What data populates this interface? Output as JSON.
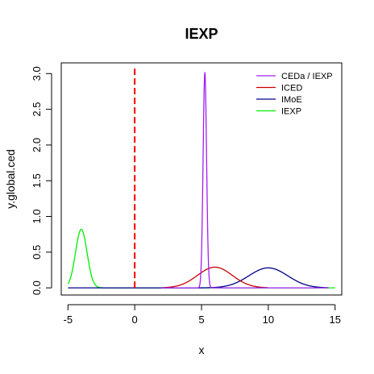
{
  "chart_data": {
    "type": "line",
    "title": "IEXP",
    "xlabel": "x",
    "ylabel": "y.global.ced",
    "xlim": [
      -5.5,
      15.5
    ],
    "ylim": [
      -0.1,
      3.15
    ],
    "xticks": [
      "-5",
      "0",
      "5",
      "10",
      "15"
    ],
    "xtick_values": [
      -5,
      0,
      5,
      10,
      15
    ],
    "yticks": [
      "0.0",
      "0.5",
      "1.0",
      "1.5",
      "2.0",
      "2.5",
      "3.0"
    ],
    "ytick_values": [
      0,
      0.5,
      1,
      1.5,
      2,
      2.5,
      3
    ],
    "legend_position": "top-right",
    "grid": false,
    "vline": {
      "x": 0,
      "y_range": [
        0,
        3.1
      ],
      "color": "#ff0000",
      "style": "dashed"
    },
    "series": [
      {
        "name": "CEDa / IEXP",
        "color": "#a020f0",
        "curve": "gaussian",
        "mean": 5.25,
        "sd": 0.13,
        "peak": 3.02,
        "x_range": [
          2.0,
          14.5
        ]
      },
      {
        "name": "ICED",
        "color": "#cc0000",
        "curve": "gaussian",
        "mean": 6.0,
        "sd": 1.3,
        "peak": 0.29,
        "x_range": [
          2.0,
          10.0
        ]
      },
      {
        "name": "IMoE",
        "color": "#00008b",
        "curve": "gaussian",
        "mean": 10.0,
        "sd": 1.45,
        "peak": 0.28,
        "x_range": [
          -5.0,
          14.5
        ]
      },
      {
        "name": "IEXP",
        "color": "#00ee00",
        "curve": "gaussian",
        "mean": -4.0,
        "sd": 0.43,
        "peak": 0.82,
        "x_range": [
          -5.0,
          15.0
        ]
      }
    ]
  }
}
